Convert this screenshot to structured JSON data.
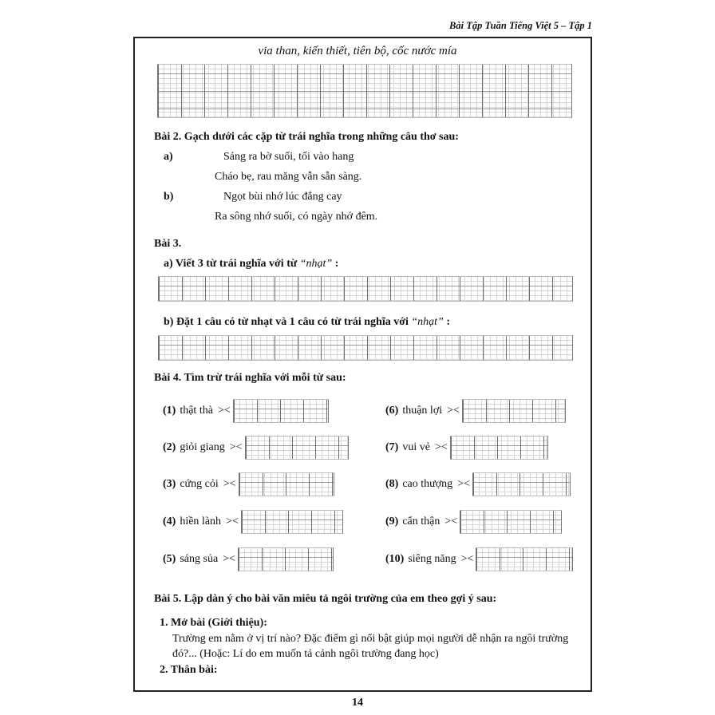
{
  "header": {
    "title": "Bài Tập Tuần Tiếng Việt 5 – Tập 1"
  },
  "top_words": "via than, kiến thiết, tiên bộ, cốc nước mía",
  "bai2": {
    "title": "Bài 2. Gạch dưới các cặp từ trái nghĩa trong những câu thơ sau:",
    "a_label": "a)",
    "a_line1": "Sáng ra bờ suối, tối vào hang",
    "a_line2": "Cháo bẹ, rau măng vẫn sẵn sàng.",
    "b_label": "b)",
    "b_line1": "Ngọt bùi nhớ lúc đắng cay",
    "b_line2": "Ra sông nhớ suối, có ngày nhớ đêm."
  },
  "bai3": {
    "title": "Bài 3.",
    "a_text": "a)  Viết 3 từ trái nghĩa với từ ",
    "a_word": "“nhạt”",
    "a_end": " :",
    "b_text": "b)  Đặt 1 câu có từ nhạt và 1 câu có từ trái nghĩa với ",
    "b_word": "“nhạt”",
    "b_end": " :"
  },
  "bai4": {
    "title": "Bài 4. Tìm trừ trái nghĩa với mỗi từ sau:",
    "symbol": "><",
    "items": [
      {
        "num": "(1)",
        "word": "thật thà"
      },
      {
        "num": "(2)",
        "word": "giỏi giang"
      },
      {
        "num": "(3)",
        "word": "cứng cỏi"
      },
      {
        "num": "(4)",
        "word": "hiền lành"
      },
      {
        "num": "(5)",
        "word": "sáng sủa"
      },
      {
        "num": "(6)",
        "word": "thuận lợi"
      },
      {
        "num": "(7)",
        "word": "vui vẻ"
      },
      {
        "num": "(8)",
        "word": "cao thượng"
      },
      {
        "num": "(9)",
        "word": "cẩn thận"
      },
      {
        "num": "(10)",
        "word": " siêng năng"
      }
    ]
  },
  "bai5": {
    "title": "Bài 5. Lập dàn ý cho bài văn miêu tả ngôi trường của em theo gợi ý sau:",
    "item1_title": "1.   Mở bài (Giới thiệu):",
    "item1_line1": "Trường em nằm ở vị trí nào? Đặc điểm gì nổi bật giúp mọi người dễ nhận ra ngôi trường",
    "item1_line2": "đó?... (Hoặc: Lí do em muốn tả cảnh ngôi trường đang học)",
    "item2_title": "2.   Thân bài:"
  },
  "page_number": "14"
}
